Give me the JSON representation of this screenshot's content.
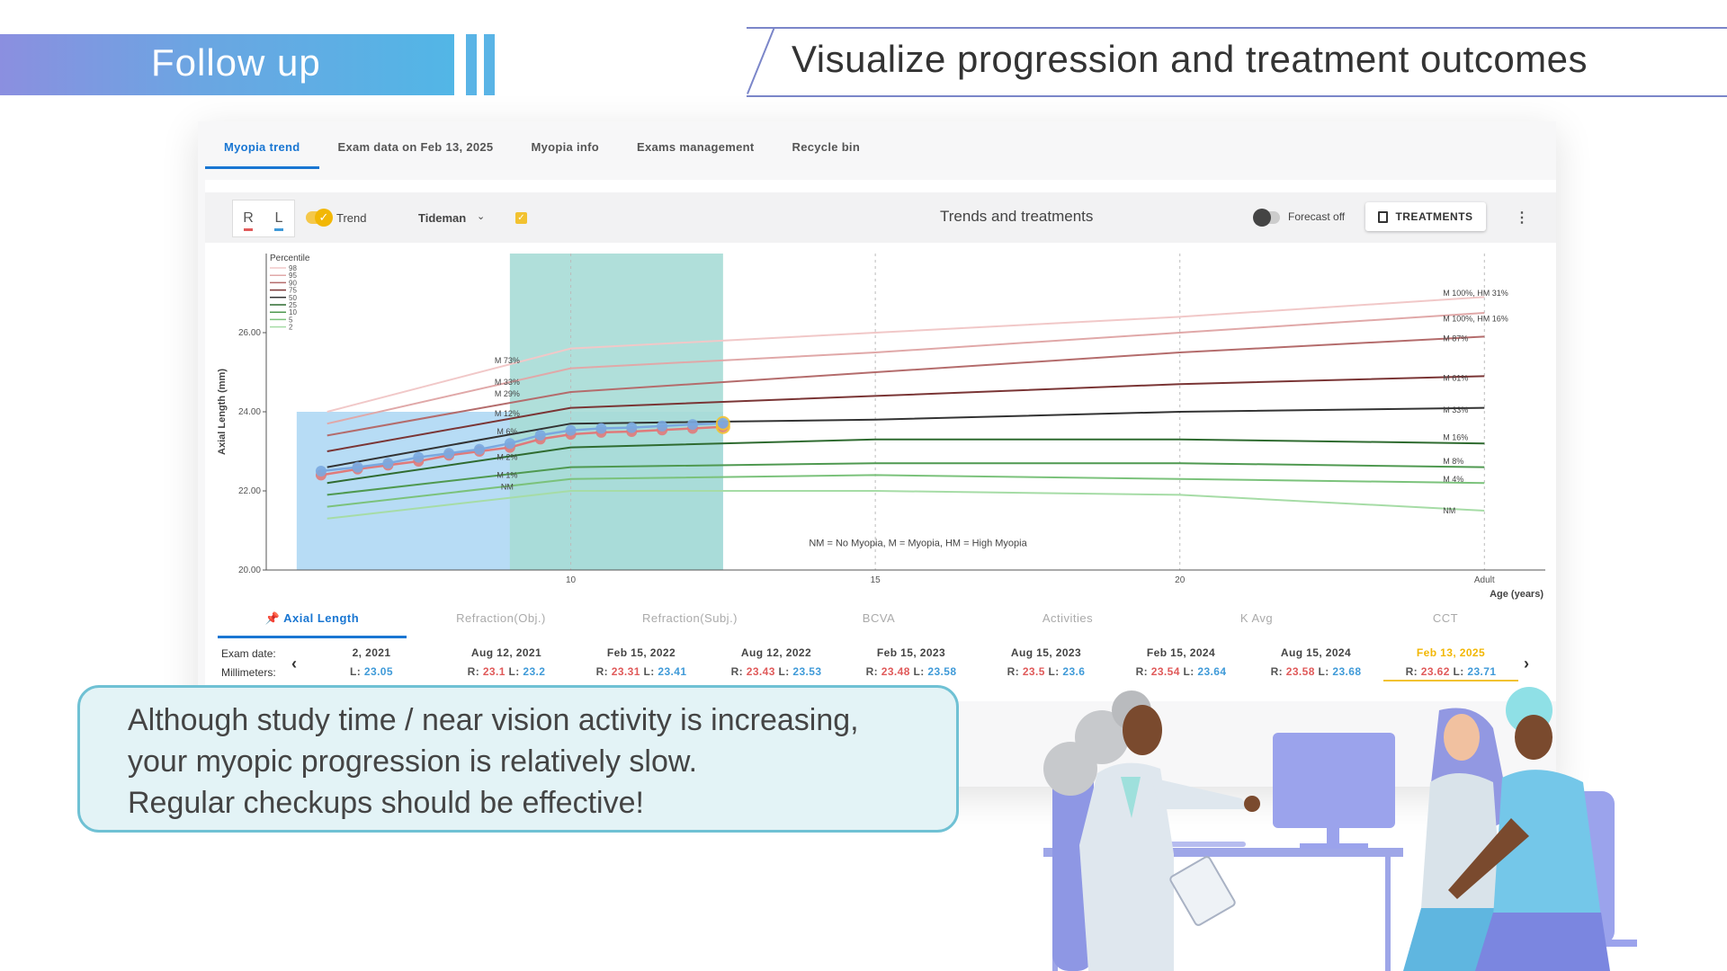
{
  "header": {
    "title": "Follow up",
    "tagline": "Visualize progression and treatment outcomes"
  },
  "tabs": [
    {
      "label": "Myopia trend",
      "active": true
    },
    {
      "label": "Exam data on Feb 13, 2025"
    },
    {
      "label": "Myopia info"
    },
    {
      "label": "Exams management"
    },
    {
      "label": "Recycle bin"
    }
  ],
  "toolbar": {
    "eye_right": "R",
    "eye_left": "L",
    "trend_label": "Trend",
    "model_select": "Tideman",
    "chart_title": "Trends and treatments",
    "forecast_label": "Forecast off",
    "treatments_button": "TREATMENTS"
  },
  "colors": {
    "accent": "#1976d2",
    "right_eye": "#e05a5a",
    "left_eye": "#3f9ad8",
    "highlight": "#f2c230",
    "bubble_border": "#6fc1d4"
  },
  "chart_data": {
    "type": "line",
    "xlabel": "Age (years)",
    "ylabel": "Axial Length (mm)",
    "ylim": [
      20,
      28
    ],
    "y_ticks": [
      "20.00",
      "22.00",
      "24.00",
      "26.00"
    ],
    "x_ticks": [
      "10",
      "15",
      "20",
      "Adult"
    ],
    "legend_title": "Percentile",
    "legend": [
      "98",
      "95",
      "90",
      "75",
      "50",
      "25",
      "10",
      "5",
      "2"
    ],
    "footnote": "NM = No Myopia, M = Myopia, HM = High Myopia",
    "left_labels": [
      "M 73%",
      "M 33%",
      "M 29%",
      "M 12%",
      "M 6%",
      "M 2%",
      "M 1%",
      "NM"
    ],
    "right_labels": [
      "M 100%, HM 31%",
      "M 100%, HM 16%",
      "M 87%",
      "M 61%",
      "M 33%",
      "M 16%",
      "M 8%",
      "M 4%",
      "NM"
    ],
    "percentile_x": [
      6,
      10,
      15,
      20,
      25
    ],
    "percentile_curves": [
      {
        "name": "98",
        "values": [
          24.0,
          25.6,
          26.0,
          26.4,
          26.9
        ]
      },
      {
        "name": "95",
        "values": [
          23.7,
          25.1,
          25.5,
          26.0,
          26.5
        ]
      },
      {
        "name": "90",
        "values": [
          23.4,
          24.5,
          25.0,
          25.5,
          25.9
        ]
      },
      {
        "name": "75",
        "values": [
          23.0,
          24.1,
          24.4,
          24.7,
          24.9
        ]
      },
      {
        "name": "50",
        "values": [
          22.6,
          23.7,
          23.8,
          24.0,
          24.1
        ]
      },
      {
        "name": "25",
        "values": [
          22.2,
          23.1,
          23.3,
          23.3,
          23.2
        ]
      },
      {
        "name": "10",
        "values": [
          21.9,
          22.6,
          22.7,
          22.7,
          22.6
        ]
      },
      {
        "name": "5",
        "values": [
          21.6,
          22.3,
          22.4,
          22.3,
          22.2
        ]
      },
      {
        "name": "2",
        "values": [
          21.3,
          22.0,
          22.0,
          21.9,
          21.5
        ]
      }
    ],
    "series": [
      {
        "name": "R",
        "x": [
          5.9,
          6.5,
          7.0,
          7.5,
          8.0,
          8.5,
          9.0,
          9.5,
          10.0,
          10.5,
          11.0,
          11.5,
          12.0,
          12.5
        ],
        "values": [
          22.4,
          22.55,
          22.65,
          22.75,
          22.9,
          23.0,
          23.1,
          23.31,
          23.43,
          23.48,
          23.5,
          23.54,
          23.58,
          23.62
        ]
      },
      {
        "name": "L",
        "x": [
          5.9,
          6.5,
          7.0,
          7.5,
          8.0,
          8.5,
          9.0,
          9.5,
          10.0,
          10.5,
          11.0,
          11.5,
          12.0,
          12.5
        ],
        "values": [
          22.5,
          22.6,
          22.7,
          22.85,
          22.95,
          23.05,
          23.2,
          23.41,
          23.53,
          23.58,
          23.6,
          23.64,
          23.68,
          23.71
        ]
      }
    ],
    "treatment_regions": [
      {
        "x": [
          5.5,
          12.5
        ],
        "y": [
          20,
          24.0
        ],
        "color": "#b7dcf5"
      },
      {
        "x": [
          9.0,
          12.5
        ],
        "y": [
          20,
          28.0
        ],
        "color": "#a7dcd6"
      }
    ]
  },
  "metric_tabs": [
    "Axial Length",
    "Refraction(Obj.)",
    "Refraction(Subj.)",
    "BCVA",
    "Activities",
    "K Avg",
    "CCT"
  ],
  "exam_strip": {
    "date_label": "Exam date:",
    "mm_label": "Millimeters:",
    "r_prefix": "R:",
    "l_prefix": "L:",
    "exams": [
      {
        "date": "2, 2021",
        "r": "",
        "l": "23.05"
      },
      {
        "date": "Aug 12, 2021",
        "r": "23.1",
        "l": "23.2"
      },
      {
        "date": "Feb 15, 2022",
        "r": "23.31",
        "l": "23.41"
      },
      {
        "date": "Aug 12, 2022",
        "r": "23.43",
        "l": "23.53"
      },
      {
        "date": "Feb 15, 2023",
        "r": "23.48",
        "l": "23.58"
      },
      {
        "date": "Aug 15, 2023",
        "r": "23.5",
        "l": "23.6"
      },
      {
        "date": "Feb 15, 2024",
        "r": "23.54",
        "l": "23.64"
      },
      {
        "date": "Aug 15, 2024",
        "r": "23.58",
        "l": "23.68"
      },
      {
        "date": "Feb 13, 2025",
        "r": "23.62",
        "l": "23.71",
        "highlight": true
      }
    ]
  },
  "message": {
    "line1": "Although study time / near vision activity is increasing,",
    "line2": "your myopic progression is relatively slow.",
    "line3": "Regular checkups should be effective!"
  }
}
